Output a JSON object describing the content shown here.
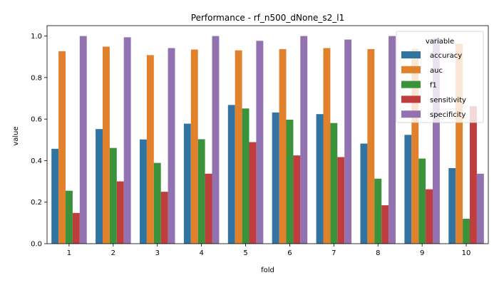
{
  "chart_data": {
    "type": "bar",
    "title": "Performance - rf_n500_dNone_s2_l1",
    "xlabel": "fold",
    "ylabel": "value",
    "ylim": [
      0,
      1.05
    ],
    "yticks": [
      "0.0",
      "0.2",
      "0.4",
      "0.6",
      "0.8",
      "1.0"
    ],
    "grid": false,
    "legend_title": "variable",
    "legend_position": "top-right",
    "categories": [
      "1",
      "2",
      "3",
      "4",
      "5",
      "6",
      "7",
      "8",
      "9",
      "10"
    ],
    "series": [
      {
        "name": "accuracy",
        "color": "#3274a1",
        "values": [
          0.457,
          0.552,
          0.502,
          0.578,
          0.668,
          0.632,
          0.624,
          0.482,
          0.524,
          0.364
        ]
      },
      {
        "name": "auc",
        "color": "#e1812c",
        "values": [
          0.927,
          0.949,
          0.908,
          0.935,
          0.931,
          0.937,
          0.942,
          0.937,
          0.938,
          0.962
        ]
      },
      {
        "name": "f1",
        "color": "#3a923a",
        "values": [
          0.255,
          0.461,
          0.389,
          0.503,
          0.651,
          0.597,
          0.581,
          0.313,
          0.41,
          0.12
        ]
      },
      {
        "name": "sensitivity",
        "color": "#c03d3e",
        "values": [
          0.148,
          0.3,
          0.25,
          0.337,
          0.489,
          0.425,
          0.417,
          0.185,
          0.262,
          0.662
        ]
      },
      {
        "name": "specificity",
        "color": "#9372b2",
        "values": [
          1.0,
          0.994,
          0.942,
          1.0,
          0.977,
          1.0,
          0.983,
          1.0,
          0.99,
          0.337
        ]
      }
    ]
  }
}
